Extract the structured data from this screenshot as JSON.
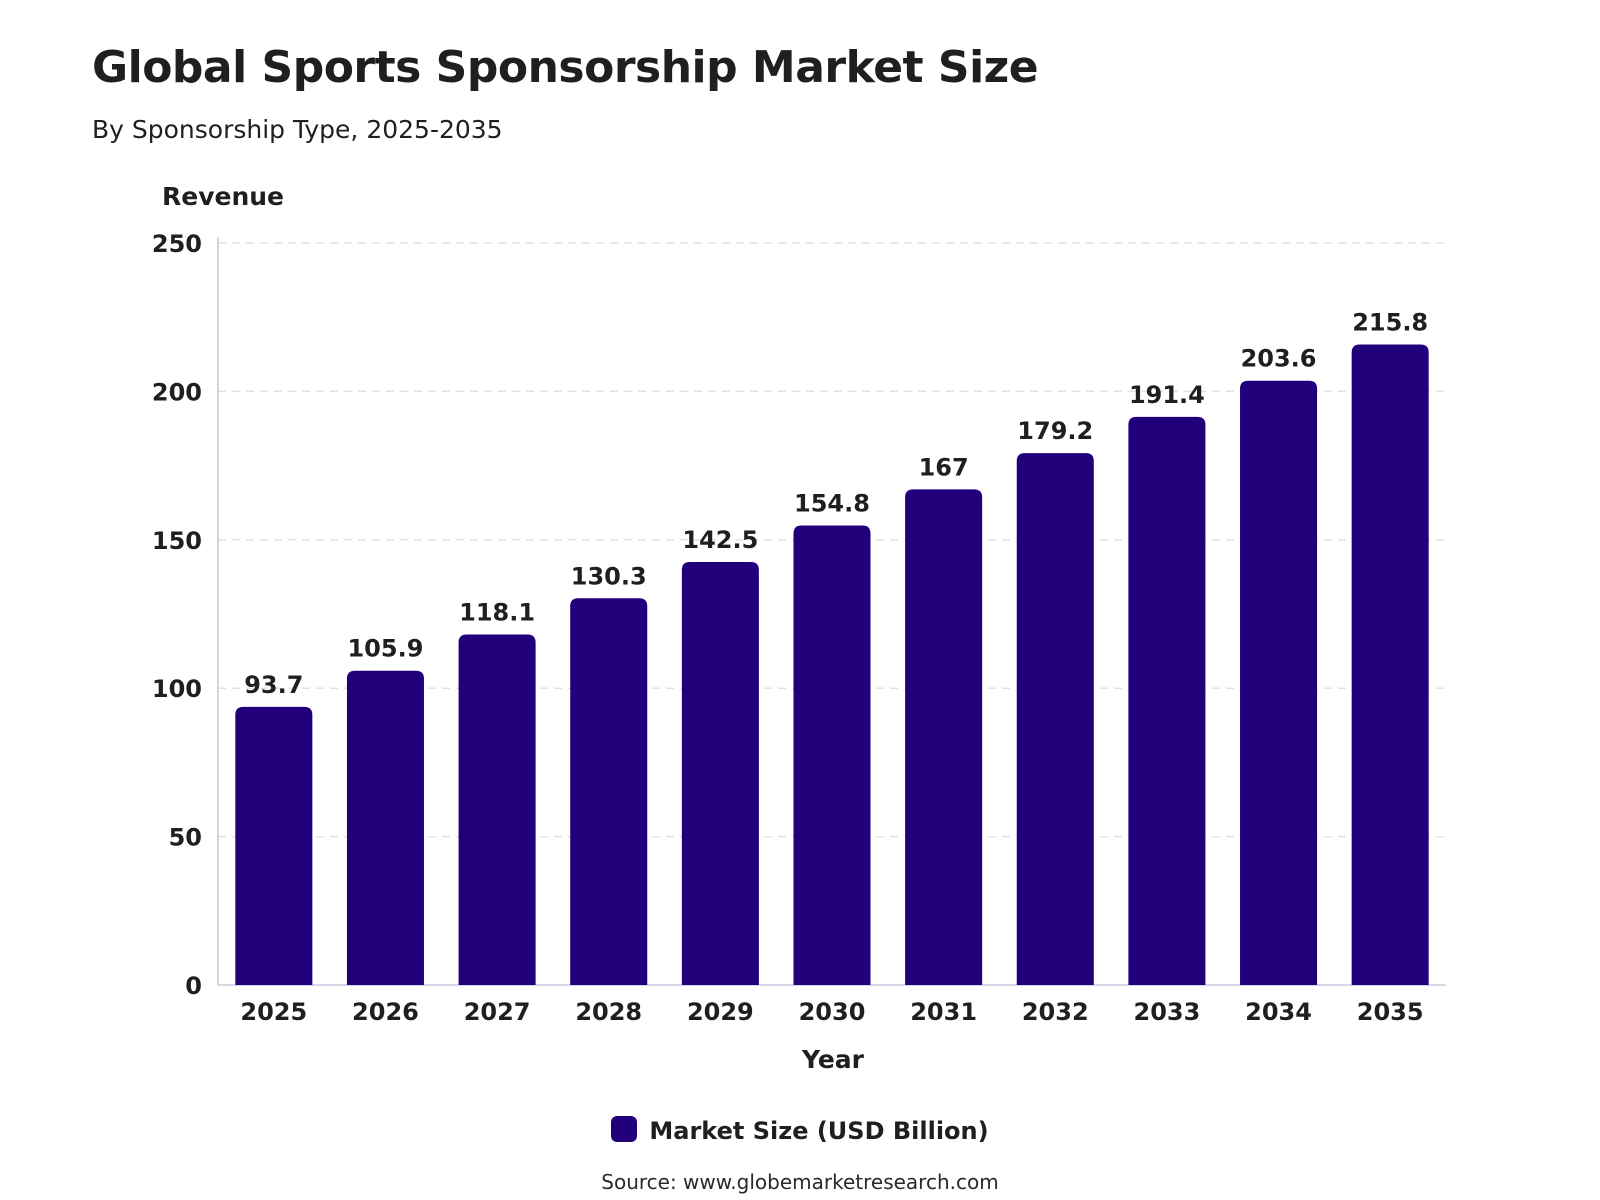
{
  "chart_data": {
    "type": "bar",
    "title": "Global Sports Sponsorship Market Size",
    "subtitle": "By Sponsorship Type, 2025-2035",
    "xlabel": "Year",
    "ylabel": "Revenue",
    "categories": [
      "2025",
      "2026",
      "2027",
      "2028",
      "2029",
      "2030",
      "2031",
      "2032",
      "2033",
      "2034",
      "2035"
    ],
    "series": [
      {
        "name": "Market Size (USD Billion)",
        "values": [
          93.7,
          105.9,
          118.1,
          130.3,
          142.5,
          154.8,
          167,
          179.2,
          191.4,
          203.6,
          215.8
        ],
        "color": "#22007c"
      }
    ],
    "ylim": [
      0,
      250
    ],
    "yticks": [
      0,
      50,
      100,
      150,
      200,
      250
    ],
    "grid": true,
    "legend_position": "bottom-center",
    "data_labels": true
  },
  "source": "Source: www.globemarketresearch.com"
}
